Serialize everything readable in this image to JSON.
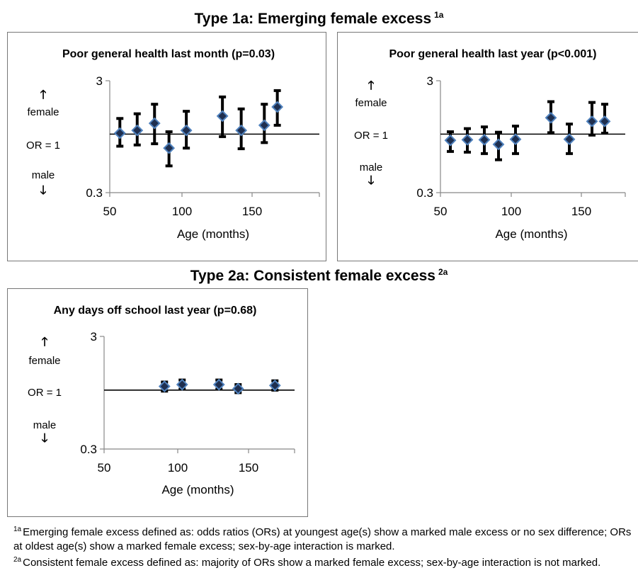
{
  "section1": {
    "title": "Type 1a: Emerging female excess",
    "marker": "1a"
  },
  "section2": {
    "title": "Type 2a: Consistent female excess",
    "marker": "2a"
  },
  "side_labels": {
    "female": "female",
    "or1": "OR = 1",
    "male": "male",
    "up_arrow": "🡑",
    "down_arrow": "🡓"
  },
  "chart_data": [
    {
      "type": "scatter",
      "title": "Poor general health last month (p=0.03)",
      "xlabel": "Age (months)",
      "ylabel": "",
      "xlim": [
        50,
        180
      ],
      "xticks": [
        "50",
        "100",
        "150"
      ],
      "ylim": [
        0.3,
        3
      ],
      "yscale": "log",
      "yticks": [
        "3",
        "0.3"
      ],
      "reference_line": 1,
      "marker_color": "#1f2f4f",
      "marker_edge": "#4f81bd",
      "points": [
        {
          "x": 57,
          "y": 1.02,
          "lo": 0.78,
          "hi": 1.38
        },
        {
          "x": 69,
          "y": 1.08,
          "lo": 0.8,
          "hi": 1.52
        },
        {
          "x": 81,
          "y": 1.25,
          "lo": 0.82,
          "hi": 1.85
        },
        {
          "x": 91,
          "y": 0.75,
          "lo": 0.52,
          "hi": 1.05
        },
        {
          "x": 103,
          "y": 1.08,
          "lo": 0.75,
          "hi": 1.6
        },
        {
          "x": 128,
          "y": 1.45,
          "lo": 0.95,
          "hi": 2.15
        },
        {
          "x": 141,
          "y": 1.08,
          "lo": 0.74,
          "hi": 1.68
        },
        {
          "x": 157,
          "y": 1.2,
          "lo": 0.84,
          "hi": 1.85
        },
        {
          "x": 166,
          "y": 1.75,
          "lo": 1.2,
          "hi": 2.45
        }
      ]
    },
    {
      "type": "scatter",
      "title": "Poor general health last year (p<0.001)",
      "xlabel": "Age (months)",
      "ylabel": "",
      "xlim": [
        50,
        180
      ],
      "xticks": [
        "50",
        "100",
        "150"
      ],
      "ylim": [
        0.3,
        3
      ],
      "yscale": "log",
      "yticks": [
        "3",
        "0.3"
      ],
      "reference_line": 1,
      "marker_color": "#1f2f4f",
      "marker_edge": "#4f81bd",
      "points": [
        {
          "x": 57,
          "y": 0.88,
          "lo": 0.7,
          "hi": 1.05
        },
        {
          "x": 69,
          "y": 0.89,
          "lo": 0.69,
          "hi": 1.12
        },
        {
          "x": 81,
          "y": 0.89,
          "lo": 0.67,
          "hi": 1.16
        },
        {
          "x": 91,
          "y": 0.81,
          "lo": 0.59,
          "hi": 1.04
        },
        {
          "x": 103,
          "y": 0.9,
          "lo": 0.67,
          "hi": 1.18
        },
        {
          "x": 128,
          "y": 1.4,
          "lo": 1.03,
          "hi": 1.95
        },
        {
          "x": 141,
          "y": 0.9,
          "lo": 0.67,
          "hi": 1.23
        },
        {
          "x": 157,
          "y": 1.3,
          "lo": 0.98,
          "hi": 1.92
        },
        {
          "x": 166,
          "y": 1.3,
          "lo": 1.02,
          "hi": 1.85
        }
      ]
    },
    {
      "type": "scatter",
      "title": "Any days off school last year (p=0.68)",
      "xlabel": "Age (months)",
      "ylabel": "",
      "xlim": [
        50,
        180
      ],
      "xticks": [
        "50",
        "100",
        "150"
      ],
      "ylim": [
        0.3,
        3
      ],
      "yscale": "log",
      "yticks": [
        "3",
        "0.3"
      ],
      "reference_line": 1,
      "marker_color": "#1f2f4f",
      "marker_edge": "#4f81bd",
      "points": [
        {
          "x": 91,
          "y": 1.08,
          "lo": 0.98,
          "hi": 1.18
        },
        {
          "x": 103,
          "y": 1.12,
          "lo": 1.02,
          "hi": 1.23
        },
        {
          "x": 128,
          "y": 1.12,
          "lo": 1.02,
          "hi": 1.23
        },
        {
          "x": 141,
          "y": 1.03,
          "lo": 0.95,
          "hi": 1.12
        },
        {
          "x": 166,
          "y": 1.1,
          "lo": 1.0,
          "hi": 1.21
        }
      ]
    }
  ],
  "footnotes": [
    {
      "marker": "1a",
      "text": "Emerging female excess defined as: odds ratios (ORs) at youngest age(s) show a marked male excess or no sex difference; ORs at oldest age(s) show a marked female excess; sex-by-age interaction is marked."
    },
    {
      "marker": "2a",
      "text": "Consistent female excess defined as: majority of ORs show a marked female excess; sex-by-age interaction is not marked."
    }
  ]
}
